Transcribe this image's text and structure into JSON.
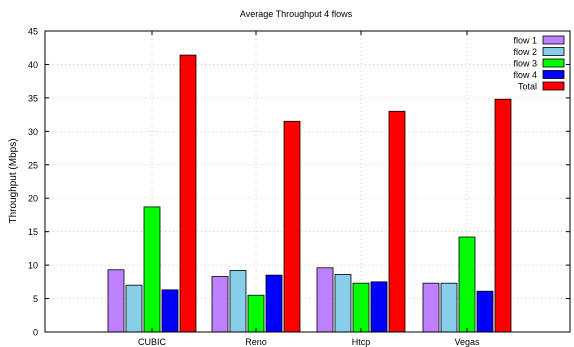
{
  "chart_data": {
    "type": "bar",
    "title": "Average Throughput 4 flows",
    "xlabel": "",
    "ylabel": "Throughput (Mbps)",
    "ylim": [
      0,
      45
    ],
    "yticks": [
      0,
      5,
      10,
      15,
      20,
      25,
      30,
      35,
      40,
      45
    ],
    "grid": true,
    "legend_position": "top-right",
    "categories": [
      "CUBIC",
      "Reno",
      "Htcp",
      "Vegas"
    ],
    "series": [
      {
        "name": "flow 1",
        "color": "#bf80ff",
        "values": [
          9.3,
          8.3,
          9.6,
          7.3
        ]
      },
      {
        "name": "flow 2",
        "color": "#87ceeb",
        "values": [
          7.0,
          9.2,
          8.6,
          7.3
        ]
      },
      {
        "name": "flow 3",
        "color": "#00ff00",
        "values": [
          18.7,
          5.5,
          7.3,
          14.2
        ]
      },
      {
        "name": "flow 4",
        "color": "#0000ff",
        "values": [
          6.3,
          8.5,
          7.5,
          6.1
        ]
      },
      {
        "name": "Total",
        "color": "#ff0000",
        "values": [
          41.4,
          31.5,
          33.0,
          34.8
        ]
      }
    ]
  }
}
